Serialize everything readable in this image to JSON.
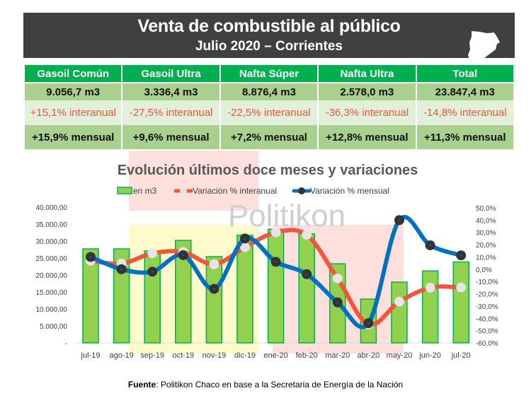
{
  "header": {
    "title": "Venta de combustible al público",
    "subtitle": "Julio 2020 – Corrientes",
    "map_icon": "corrientes-province-map"
  },
  "table": {
    "columns": [
      "Gasoil Común",
      "Gasoil Ultra",
      "Nafta Súper",
      "Nafta Ultra",
      "Total"
    ],
    "volume": [
      "9.056,7 m3",
      "3.336,4 m3",
      "8.876,4 m3",
      "2.578,0 m3",
      "23.847,4 m3"
    ],
    "interanual": [
      "+15,1% interanual",
      "-27,5% interanual",
      "-22,5% interanual",
      "-36,3% interanual",
      "-14,8% interanual"
    ],
    "mensual": [
      "+15,9% mensual",
      "+9,6% mensual",
      "+7,2% mensual",
      "+12,8% mensual",
      "+11,3% mensual"
    ]
  },
  "watermark": "Politikon",
  "chart_data": {
    "type": "bar+line",
    "title": "Evolución últimos doce meses y variaciones",
    "categories": [
      "jul-19",
      "ago-19",
      "sep-19",
      "oct-19",
      "nov-19",
      "dic-19",
      "ene-20",
      "feb-20",
      "mar-20",
      "abr-20",
      "may-20",
      "jun-20",
      "jul-20"
    ],
    "series": [
      {
        "name": "en m3",
        "type": "bar",
        "axis": "left",
        "color": "#92d050",
        "values": [
          27700,
          27700,
          27100,
          30200,
          25400,
          31700,
          33500,
          32100,
          23300,
          12900,
          17900,
          21200,
          23847.4
        ]
      },
      {
        "name": "Variación % interanual",
        "type": "line",
        "axis": "right",
        "color": "#f0573a",
        "values": [
          6.9,
          4.6,
          13,
          14,
          4,
          18,
          30,
          28,
          -7.5,
          -45,
          -26.4,
          -15,
          -14.8
        ]
      },
      {
        "name": "Variación % mensual",
        "type": "line",
        "axis": "right",
        "color": "#0070c0",
        "values": [
          10,
          0,
          -2,
          11.5,
          -16,
          25,
          6,
          -4,
          -27,
          -44,
          40,
          19.5,
          11.3
        ]
      }
    ],
    "left_axis": {
      "ylim": [
        0,
        40000
      ],
      "ticks": [
        "-",
        "5.000,00",
        "10.000,00",
        "15.000,00",
        "20.000,00",
        "25.000,00",
        "30.000,00",
        "35.000,00",
        "40.000,00"
      ]
    },
    "right_axis": {
      "ylim": [
        -60,
        50
      ],
      "ticks": [
        "-60,0%",
        "-50,0%",
        "-40,0%",
        "-30,0%",
        "-20,0%",
        "-10,0%",
        "0,0%",
        "10,0%",
        "20,0%",
        "30,0%",
        "40,0%",
        "50,0%"
      ]
    },
    "legend": "top",
    "grid": false
  },
  "footer": {
    "label": "Fuente",
    "text": ": Politikon Chaco en base a la Secretaria de Energía de la Nación"
  }
}
